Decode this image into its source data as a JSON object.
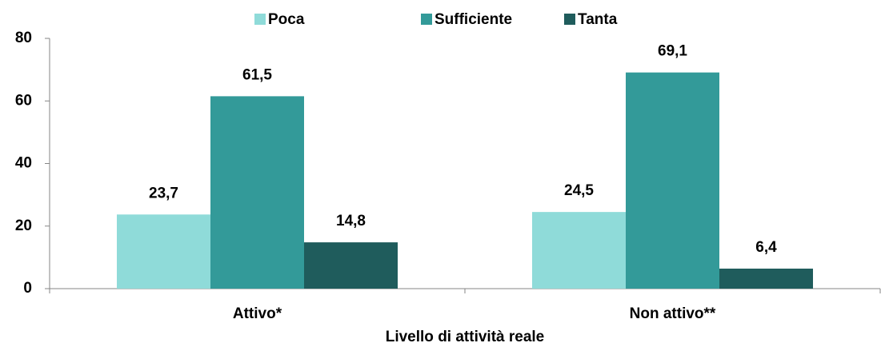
{
  "chart_data": {
    "type": "bar",
    "categories": [
      "Attivo*",
      "Non attivo**"
    ],
    "x_label": "Livello di attività reale",
    "series": [
      {
        "name": "Poca",
        "color": "#8fdbd9",
        "values": [
          23.7,
          24.5
        ],
        "value_labels": [
          "23,7",
          "24,5"
        ]
      },
      {
        "name": "Sufficiente",
        "color": "#339a99",
        "values": [
          61.5,
          69.1
        ],
        "value_labels": [
          "61,5",
          "69,1"
        ]
      },
      {
        "name": "Tanta",
        "color": "#1f5c5c",
        "values": [
          14.8,
          6.4
        ],
        "value_labels": [
          "14,8",
          "6,4"
        ]
      }
    ],
    "ylim": [
      0,
      80
    ],
    "yticks": [
      0,
      20,
      40,
      60,
      80
    ],
    "grid": false,
    "legend": "top"
  }
}
